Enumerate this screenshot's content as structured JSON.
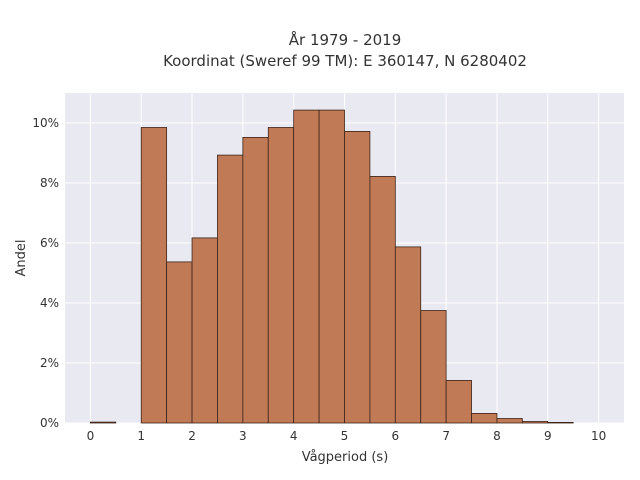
{
  "chart_data": {
    "type": "bar",
    "title_lines": [
      "År 1979 - 2019",
      "Koordinat (Sweref 99 TM): E 360147, N 6280402"
    ],
    "xlabel": "Vågperiod (s)",
    "ylabel": "Andel",
    "xlim": [
      -0.5,
      10.5
    ],
    "ylim": [
      0,
      11
    ],
    "x_ticks": [
      "0",
      "1",
      "2",
      "3",
      "4",
      "5",
      "6",
      "7",
      "8",
      "9",
      "10"
    ],
    "y_ticks": [
      "0%",
      "2%",
      "4%",
      "6%",
      "8%",
      "10%"
    ],
    "bin_width": 0.5,
    "bins": [
      {
        "x0": 0.0,
        "value": 0.03
      },
      {
        "x0": 0.5,
        "value": 0.0
      },
      {
        "x0": 1.0,
        "value": 9.85
      },
      {
        "x0": 1.5,
        "value": 5.37
      },
      {
        "x0": 2.0,
        "value": 6.17
      },
      {
        "x0": 2.5,
        "value": 8.93
      },
      {
        "x0": 3.0,
        "value": 9.52
      },
      {
        "x0": 3.5,
        "value": 9.85
      },
      {
        "x0": 4.0,
        "value": 10.43
      },
      {
        "x0": 4.5,
        "value": 10.43
      },
      {
        "x0": 5.0,
        "value": 9.72
      },
      {
        "x0": 5.5,
        "value": 8.22
      },
      {
        "x0": 6.0,
        "value": 5.87
      },
      {
        "x0": 6.5,
        "value": 3.75
      },
      {
        "x0": 7.0,
        "value": 1.42
      },
      {
        "x0": 7.5,
        "value": 0.32
      },
      {
        "x0": 8.0,
        "value": 0.15
      },
      {
        "x0": 8.5,
        "value": 0.05
      },
      {
        "x0": 9.0,
        "value": 0.02
      }
    ],
    "grid": true,
    "colors": {
      "bar_fill": "#c07a56",
      "plot_background": "#e9e9f2"
    }
  }
}
